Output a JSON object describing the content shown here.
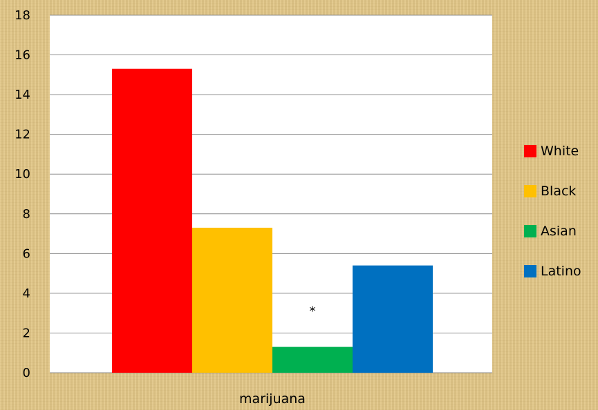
{
  "chart_data": {
    "type": "bar",
    "categories": [
      "marijuana"
    ],
    "series": [
      {
        "name": "White",
        "values": [
          15.3
        ],
        "color": "#ff0000"
      },
      {
        "name": "Black",
        "values": [
          7.3
        ],
        "color": "#ffc000"
      },
      {
        "name": "Asian",
        "values": [
          1.3
        ],
        "color": "#00b050"
      },
      {
        "name": "Latino",
        "values": [
          5.4
        ],
        "color": "#0070c0"
      }
    ],
    "ylim": [
      0,
      18
    ],
    "yticks": [
      "0",
      "2",
      "4",
      "6",
      "8",
      "10",
      "12",
      "14",
      "16",
      "18"
    ],
    "grid": true,
    "legend_position": "right",
    "annotations": [
      {
        "series": "Asian",
        "text": "*"
      }
    ],
    "title": "",
    "xlabel": "",
    "ylabel": ""
  }
}
